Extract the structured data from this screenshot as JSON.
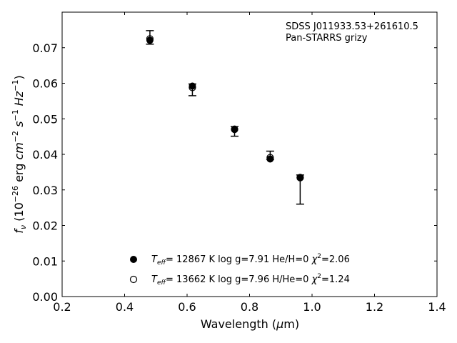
{
  "chart_data": {
    "type": "scatter",
    "annotation": [
      "SDSS J011933.53+261610.5",
      "Pan-STARRS grizy"
    ],
    "xlabel": {
      "prefix": "Wavelength (",
      "mu": "μ",
      "suffix": "m)"
    },
    "ylabel": {
      "f": "f",
      "nu": "ν",
      "open": " (10",
      "exp1": "−26",
      "erg": " erg ",
      "cm": "cm",
      "exp2": "−2",
      "s": "s",
      "exp3": "−1",
      "hz": "Hz",
      "exp4": "−1",
      "close": ")"
    },
    "xlim": [
      0.2,
      1.4
    ],
    "ylim": [
      0.0,
      0.08
    ],
    "xticks": [
      0.2,
      0.4,
      0.6,
      0.8,
      1.0,
      1.2,
      1.4
    ],
    "xtick_labels": [
      "0.2",
      "0.4",
      "0.6",
      "0.8",
      "1.0",
      "1.2",
      "1.4"
    ],
    "yticks": [
      0.0,
      0.01,
      0.02,
      0.03,
      0.04,
      0.05,
      0.06,
      0.07
    ],
    "ytick_labels": [
      "0.00",
      "0.01",
      "0.02",
      "0.03",
      "0.04",
      "0.05",
      "0.06",
      "0.07"
    ],
    "grid": false,
    "legend_position": "bottom-center",
    "observed": {
      "x": [
        0.481,
        0.617,
        0.752,
        0.866,
        0.962
      ],
      "y": [
        0.0728,
        0.0581,
        0.0472,
        0.04,
        0.0301
      ],
      "yerr_low": [
        0.071,
        0.0565,
        0.0451,
        0.0386,
        0.026
      ],
      "yerr_high": [
        0.0748,
        0.0598,
        0.0478,
        0.0409,
        0.0342
      ]
    },
    "series": [
      {
        "marker": "filled-circle",
        "legend": {
          "T": "T",
          "sub": "eff",
          "rest": "= 12867 K  log g=7.91  He/H=0  ",
          "chi": "χ",
          "sq": "2",
          "val": "=2.06"
        },
        "x": [
          0.481,
          0.617,
          0.752,
          0.866,
          0.962
        ],
        "y": [
          0.0721,
          0.0592,
          0.0471,
          0.0387,
          0.0334
        ]
      },
      {
        "marker": "open-circle",
        "legend": {
          "T": "T",
          "sub": "eff",
          "rest": "= 13662 K  log g=7.96  H/He=0  ",
          "chi": "χ",
          "sq": "2",
          "val": "=1.24"
        },
        "x": [
          0.481,
          0.617,
          0.752,
          0.866,
          0.962
        ],
        "y": [
          0.0725,
          0.0588,
          0.047,
          0.0391,
          0.0335
        ]
      }
    ]
  }
}
